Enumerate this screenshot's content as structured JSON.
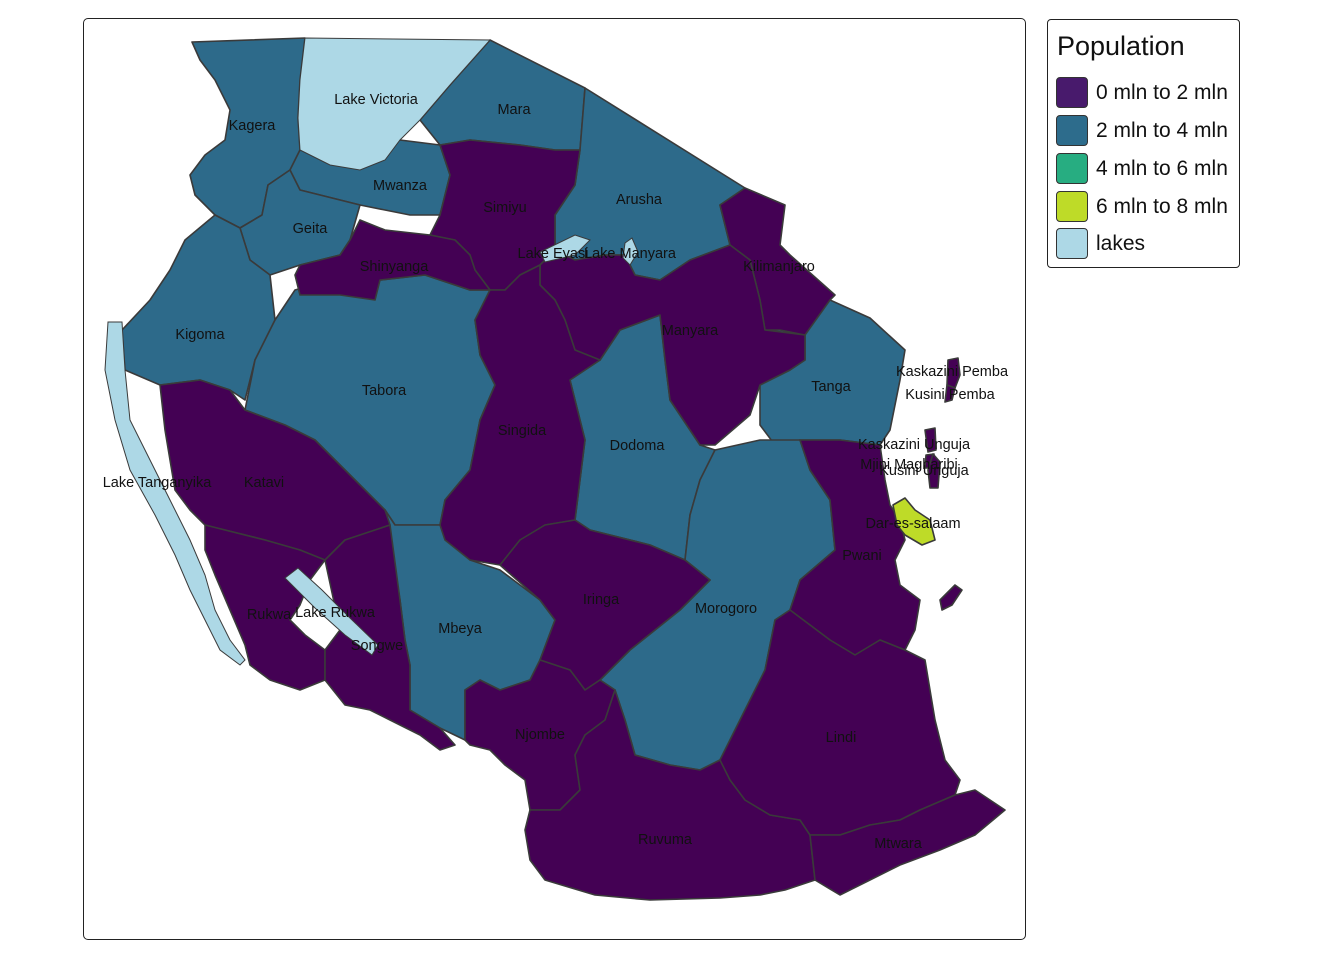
{
  "colors": {
    "pop_0_2": "#440154",
    "pop_2_4": "#2D6A8A",
    "pop_4_6": "#27AD81",
    "pop_6_8": "#BEDB28",
    "lakes": "#ADD8E6"
  },
  "legend": {
    "title": "Population",
    "items": [
      {
        "label": "0 mln to 2 mln",
        "color": "#481A6C"
      },
      {
        "label": "2 mln to 4 mln",
        "color": "#2D6C8C"
      },
      {
        "label": "4 mln to 6 mln",
        "color": "#27AD81"
      },
      {
        "label": "6 mln to 8 mln",
        "color": "#BEDB28"
      },
      {
        "label": "lakes",
        "color": "#ADD8E6"
      }
    ]
  },
  "regions": [
    {
      "name": "Kagera",
      "population_class": "2 mln to 4 mln"
    },
    {
      "name": "Mara",
      "population_class": "2 mln to 4 mln"
    },
    {
      "name": "Mwanza",
      "population_class": "2 mln to 4 mln"
    },
    {
      "name": "Geita",
      "population_class": "2 mln to 4 mln"
    },
    {
      "name": "Simiyu",
      "population_class": "0 mln to 2 mln"
    },
    {
      "name": "Arusha",
      "population_class": "2 mln to 4 mln"
    },
    {
      "name": "Kilimanjaro",
      "population_class": "0 mln to 2 mln"
    },
    {
      "name": "Shinyanga",
      "population_class": "0 mln to 2 mln"
    },
    {
      "name": "Manyara",
      "population_class": "0 mln to 2 mln"
    },
    {
      "name": "Kigoma",
      "population_class": "2 mln to 4 mln"
    },
    {
      "name": "Tabora",
      "population_class": "2 mln to 4 mln"
    },
    {
      "name": "Singida",
      "population_class": "0 mln to 2 mln"
    },
    {
      "name": "Tanga",
      "population_class": "2 mln to 4 mln"
    },
    {
      "name": "Dodoma",
      "population_class": "2 mln to 4 mln"
    },
    {
      "name": "Katavi",
      "population_class": "0 mln to 2 mln"
    },
    {
      "name": "Rukwa",
      "population_class": "0 mln to 2 mln"
    },
    {
      "name": "Songwe",
      "population_class": "0 mln to 2 mln"
    },
    {
      "name": "Mbeya",
      "population_class": "2 mln to 4 mln"
    },
    {
      "name": "Iringa",
      "population_class": "0 mln to 2 mln"
    },
    {
      "name": "Morogoro",
      "population_class": "2 mln to 4 mln"
    },
    {
      "name": "Pwani",
      "population_class": "0 mln to 2 mln"
    },
    {
      "name": "Dar-es-salaam",
      "population_class": "6 mln to 8 mln"
    },
    {
      "name": "Njombe",
      "population_class": "0 mln to 2 mln"
    },
    {
      "name": "Ruvuma",
      "population_class": "0 mln to 2 mln"
    },
    {
      "name": "Lindi",
      "population_class": "0 mln to 2 mln"
    },
    {
      "name": "Mtwara",
      "population_class": "0 mln to 2 mln"
    },
    {
      "name": "Kaskazini Pemba",
      "population_class": "0 mln to 2 mln"
    },
    {
      "name": "Kusini Pemba",
      "population_class": "0 mln to 2 mln"
    },
    {
      "name": "Kaskazini Unguja",
      "population_class": "0 mln to 2 mln"
    },
    {
      "name": "Mjini Magharibi",
      "population_class": "0 mln to 2 mln"
    },
    {
      "name": "Kusini Unguja",
      "population_class": "0 mln to 2 mln"
    }
  ],
  "lakes": [
    "Lake Victoria",
    "Lake Eyasi",
    "Lake Manyara",
    "Lake Tanganyika",
    "Lake Rukwa"
  ]
}
